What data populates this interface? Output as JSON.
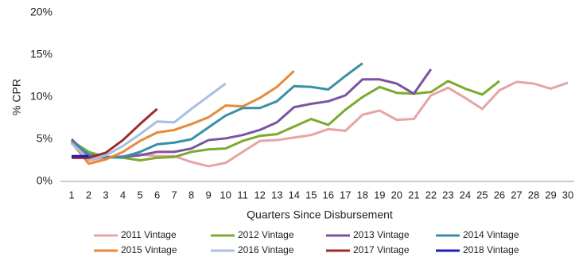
{
  "chart_data": {
    "type": "line",
    "x_label": "Quarters Since Disbursement",
    "y_label": "% CPR",
    "x": [
      1,
      2,
      3,
      4,
      5,
      6,
      7,
      8,
      9,
      10,
      11,
      12,
      13,
      14,
      15,
      16,
      17,
      18,
      19,
      20,
      21,
      22,
      23,
      24,
      25,
      26,
      27,
      28,
      29,
      30
    ],
    "xlim": [
      1,
      30
    ],
    "ylim": [
      0,
      20
    ],
    "yticks": [
      {
        "value": 0,
        "label": "0%"
      },
      {
        "value": 5,
        "label": "5%"
      },
      {
        "value": 10,
        "label": "10%"
      },
      {
        "value": 15,
        "label": "15%"
      },
      {
        "value": 20,
        "label": "20%"
      }
    ],
    "grid": false,
    "legend": "bottom",
    "series": [
      {
        "name": "2011 Vintage",
        "color": "#e8a4a4",
        "values": [
          4.8,
          2.5,
          2.8,
          3.0,
          3.2,
          3.0,
          3.0,
          2.3,
          1.8,
          2.2,
          3.5,
          4.8,
          4.9,
          5.2,
          5.5,
          6.2,
          6.0,
          7.9,
          8.4,
          7.3,
          7.4,
          10.2,
          11.1,
          9.9,
          8.6,
          10.8,
          11.8,
          11.6,
          11.0,
          11.7
        ]
      },
      {
        "name": "2012 Vintage",
        "color": "#7aab2f",
        "values": [
          4.8,
          3.5,
          2.9,
          2.8,
          2.5,
          2.8,
          2.9,
          3.5,
          3.8,
          3.9,
          4.8,
          5.4,
          5.6,
          6.5,
          7.4,
          6.7,
          8.5,
          10.0,
          11.2,
          10.5,
          10.4,
          10.6,
          11.9,
          11.0,
          10.3,
          11.9,
          null,
          null,
          null,
          null
        ]
      },
      {
        "name": "2013 Vintage",
        "color": "#7b54a0",
        "values": [
          5.0,
          3.0,
          2.9,
          2.9,
          3.1,
          3.5,
          3.5,
          3.9,
          4.9,
          5.1,
          5.5,
          6.1,
          7.0,
          8.8,
          9.2,
          9.5,
          10.2,
          12.1,
          12.1,
          11.6,
          10.4,
          13.3,
          null,
          null,
          null,
          null,
          null,
          null,
          null,
          null
        ]
      },
      {
        "name": "2014 Vintage",
        "color": "#3a8fa8",
        "values": [
          4.8,
          3.2,
          2.8,
          2.9,
          3.5,
          4.4,
          4.6,
          5.0,
          6.4,
          7.8,
          8.7,
          8.7,
          9.5,
          11.3,
          11.2,
          10.9,
          12.5,
          14.0,
          null,
          null,
          null,
          null,
          null,
          null,
          null,
          null,
          null,
          null,
          null,
          null
        ]
      },
      {
        "name": "2015 Vintage",
        "color": "#e88a3a",
        "values": [
          4.6,
          2.1,
          2.6,
          3.5,
          4.8,
          5.8,
          6.1,
          6.8,
          7.6,
          9.0,
          8.9,
          9.9,
          11.2,
          13.1,
          null,
          null,
          null,
          null,
          null,
          null,
          null,
          null,
          null,
          null,
          null,
          null,
          null,
          null,
          null,
          null
        ]
      },
      {
        "name": "2016 Vintage",
        "color": "#a9bfe0",
        "values": [
          4.5,
          2.6,
          3.1,
          4.2,
          5.6,
          7.1,
          7.0,
          8.6,
          10.1,
          11.6,
          null,
          null,
          null,
          null,
          null,
          null,
          null,
          null,
          null,
          null,
          null,
          null,
          null,
          null,
          null,
          null,
          null,
          null,
          null,
          null
        ]
      },
      {
        "name": "2017 Vintage",
        "color": "#9b2d2a",
        "values": [
          2.8,
          2.8,
          3.4,
          4.9,
          6.8,
          8.6,
          null,
          null,
          null,
          null,
          null,
          null,
          null,
          null,
          null,
          null,
          null,
          null,
          null,
          null,
          null,
          null,
          null,
          null,
          null,
          null,
          null,
          null,
          null,
          null
        ]
      },
      {
        "name": "2018 Vintage",
        "color": "#1c1cc8",
        "values": [
          3.0,
          3.0,
          null,
          null,
          null,
          null,
          null,
          null,
          null,
          null,
          null,
          null,
          null,
          null,
          null,
          null,
          null,
          null,
          null,
          null,
          null,
          null,
          null,
          null,
          null,
          null,
          null,
          null,
          null,
          null
        ]
      }
    ]
  }
}
